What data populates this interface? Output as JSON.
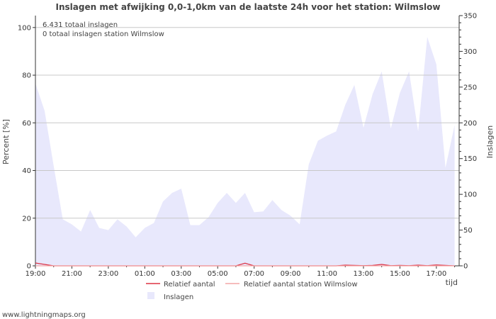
{
  "chart_data": {
    "type": "area",
    "title": "Inslagen met afwijking 0,0-1,0km van de laatste 24h voor het station: Wilmslow",
    "info_lines": [
      "6.431 totaal inslagen",
      "0 totaal inslagen station Wilmslow"
    ],
    "ylabel_left": "Percent   [%]",
    "ylabel_right": "Inslagen",
    "xlabel": "tijd",
    "x_ticks": [
      "19:00",
      "21:00",
      "23:00",
      "01:00",
      "03:00",
      "05:00",
      "07:00",
      "09:00",
      "11:00",
      "13:00",
      "15:00",
      "17:00"
    ],
    "y_left": {
      "min": 0,
      "max": 105,
      "ticks": [
        0,
        20,
        40,
        60,
        80,
        100
      ]
    },
    "y_right": {
      "min": 0,
      "max": 350,
      "ticks": [
        0,
        50,
        100,
        150,
        200,
        250,
        300,
        350
      ]
    },
    "x_range_hours": [
      0,
      23.25
    ],
    "series": [
      {
        "name": "Inslagen",
        "axis": "right",
        "kind": "area",
        "color": "#e8e8fc",
        "x_hours": [
          0,
          0.5,
          1,
          1.5,
          2,
          2.5,
          3,
          3.5,
          4,
          4.5,
          5,
          5.5,
          6,
          6.5,
          7,
          7.5,
          8,
          8.5,
          9,
          9.5,
          10,
          10.5,
          11,
          11.5,
          12,
          12.5,
          13,
          13.5,
          14,
          14.5,
          15,
          15.5,
          16,
          16.5,
          17,
          17.5,
          18,
          18.5,
          19,
          19.5,
          20,
          20.5,
          21,
          21.5,
          22,
          22.5,
          23
        ],
        "values": [
          255,
          217,
          140,
          65,
          58,
          48,
          78,
          53,
          50,
          65,
          55,
          40,
          53,
          60,
          90,
          102,
          108,
          57,
          57,
          68,
          88,
          102,
          88,
          102,
          75,
          76,
          92,
          78,
          70,
          58,
          142,
          175,
          182,
          188,
          225,
          253,
          193,
          240,
          272,
          192,
          242,
          272,
          188,
          320,
          282,
          137,
          197
        ]
      },
      {
        "name": "Relatief aantal",
        "axis": "left",
        "kind": "line",
        "color": "#dd3344",
        "x_hours": [
          0,
          0.5,
          1,
          1.5,
          2,
          3,
          4,
          5,
          6,
          7,
          8,
          9,
          10,
          11,
          11.5,
          12,
          12.5,
          13,
          13.5,
          14,
          14.5,
          15,
          15.5,
          16,
          16.5,
          17,
          17.5,
          18,
          18.5,
          19,
          19.5,
          20,
          20.5,
          21,
          21.5,
          22,
          22.5,
          23
        ],
        "values": [
          1.2,
          0.6,
          0,
          0,
          0,
          0,
          0,
          0,
          0,
          0,
          0,
          0,
          0,
          0,
          1.1,
          0,
          0,
          0,
          0,
          0,
          0,
          0,
          0,
          0,
          0,
          0.3,
          0.2,
          0.1,
          0.2,
          0.6,
          0.1,
          0.2,
          0.1,
          0.3,
          0.1,
          0.4,
          0.2,
          0
        ]
      },
      {
        "name": "Relatief aantal station Wilmslow",
        "axis": "left",
        "kind": "line",
        "color": "#f4a6a6",
        "x_hours": [
          0,
          23
        ],
        "values": [
          0,
          0
        ]
      }
    ],
    "legend": [
      {
        "label": "Relatief aantal",
        "symbol": "line",
        "color": "#dd3344"
      },
      {
        "label": "Relatief aantal station Wilmslow",
        "symbol": "line",
        "color": "#f4a6a6"
      },
      {
        "label": "Inslagen",
        "symbol": "box",
        "color": "#e8e8fc"
      }
    ],
    "grid": true,
    "legend_position": "bottom-center"
  },
  "footer": {
    "credit": "www.lightningmaps.org"
  }
}
